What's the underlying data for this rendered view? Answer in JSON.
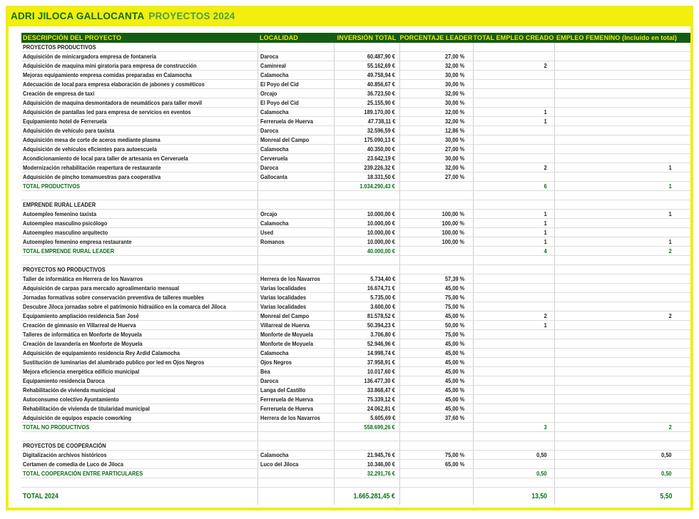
{
  "title": {
    "brand": "ADRI JILOCA GALLOCANTA",
    "suffix": "PROYECTOS 2024"
  },
  "colors": {
    "frame_yellow": "#f2ee0e",
    "brand_green": "#0b6e15",
    "suffix_green": "#4aa147",
    "header_bg": "#155c13",
    "header_text": "#f2ee0e",
    "total_text": "#0b6e15",
    "body_text": "#1d1d1b",
    "grid_line": "#cfcfcf"
  },
  "columns": [
    "DESCRIPCIÓN DEL PROYECTO",
    "LOCALIDAD",
    "INVERSIÓN TOTAL",
    "PORCENTAJE LEADER",
    "TOTAL EMPLEO CREADO",
    "EMPLEO FEMENINO (Incluido en total)"
  ],
  "sections": [
    {
      "name": "PROYECTOS PRODUCTIVOS",
      "rows": [
        {
          "desc": "Adquisición de minicargadora empresa de fontanería",
          "loc": "Daroca",
          "inv": "60.487,90 €",
          "pct": "27,00 %",
          "emp": "",
          "fem": ""
        },
        {
          "desc": "Adquisición de maquina mini giratoria para empresa de construcción",
          "loc": "Caminreal",
          "inv": "55.162,69 €",
          "pct": "32,00 %",
          "emp": "2",
          "fem": ""
        },
        {
          "desc": "Mejoras equipamiento empresa comidas preparadas en Calamocha",
          "loc": "Calamocha",
          "inv": "49.758,94 €",
          "pct": "30,00 %",
          "emp": "",
          "fem": ""
        },
        {
          "desc": "Adecuación de local para empresa elaboración de jabones y cosméticos",
          "loc": "El Poyo del Cid",
          "inv": "40.856,67 €",
          "pct": "30,00 %",
          "emp": "",
          "fem": ""
        },
        {
          "desc": "Creación de empresa de taxi",
          "loc": "Orcajo",
          "inv": "36.723,50 €",
          "pct": "32,00 %",
          "emp": "",
          "fem": ""
        },
        {
          "desc": "Adquisición de maquina desmontadora de neumáticos para taller movil",
          "loc": "El Poyo del Cid",
          "inv": "25.155,90 €",
          "pct": "30,00 %",
          "emp": "",
          "fem": ""
        },
        {
          "desc": "Adquisición de pantallas led para empresa de servicios en eventos",
          "loc": "Calamocha",
          "inv": "189.170,00 €",
          "pct": "32,00 %",
          "emp": "1",
          "fem": ""
        },
        {
          "desc": "Equipamiento hotel de Ferreruela",
          "loc": "Ferreruela de Huerva",
          "inv": "47.738,11 €",
          "pct": "32,00 %",
          "emp": "1",
          "fem": ""
        },
        {
          "desc": "Adquisición de vehículo para taxista",
          "loc": "Daroca",
          "inv": "32.596,59 €",
          "pct": "12,86 %",
          "emp": "",
          "fem": ""
        },
        {
          "desc": "Adquisición mesa de corte de aceros mediante plasma",
          "loc": "Monreal del Campo",
          "inv": "175.090,13 €",
          "pct": "30,00 %",
          "emp": "",
          "fem": ""
        },
        {
          "desc": "Adquisición de vehículos eficientes para autoescuela",
          "loc": "Calamocha",
          "inv": "40.350,00 €",
          "pct": "27,00 %",
          "emp": "",
          "fem": ""
        },
        {
          "desc": "Acondicionamiento de local para taller de artesanía en Cerveruela",
          "loc": "Cerveruela",
          "inv": "23.642,19 €",
          "pct": "30,00 %",
          "emp": "",
          "fem": ""
        },
        {
          "desc": "Modernización rehabilitación reapertura de restaurante",
          "loc": "Daroca",
          "inv": "239.226,32 €",
          "pct": "32,00 %",
          "emp": "2",
          "fem": "1"
        },
        {
          "desc": "Adquisición de pincho tomamuestras para cooperativa",
          "loc": "Gallocanta",
          "inv": "18.331,50 €",
          "pct": "27,00 %",
          "emp": "",
          "fem": ""
        }
      ],
      "total": {
        "label": "TOTAL PRODUCTIVOS",
        "inv": "1.034.290,43 €",
        "emp": "6",
        "fem": "1"
      }
    },
    {
      "name": "EMPRENDE RURAL LEADER",
      "rows": [
        {
          "desc": "Autoempleo femenino taxista",
          "loc": "Orcajo",
          "inv": "10.000,00 €",
          "pct": "100,00 %",
          "emp": "1",
          "fem": "1"
        },
        {
          "desc": "Autoempleo masculino psicólogo",
          "loc": "Calamocha",
          "inv": "10.000,00 €",
          "pct": "100,00 %",
          "emp": "1",
          "fem": ""
        },
        {
          "desc": "Autoempleo masculino arquitecto",
          "loc": "Used",
          "inv": "10.000,00 €",
          "pct": "100,00 %",
          "emp": "1",
          "fem": ""
        },
        {
          "desc": "Autoempleo femenino empresa restaurante",
          "loc": "Romanos",
          "inv": "10.000,00 €",
          "pct": "100,00 %",
          "emp": "1",
          "fem": "1"
        }
      ],
      "total": {
        "label": "TOTAL EMPRENDE RURAL LEADER",
        "inv": "40.000,00 €",
        "emp": "4",
        "fem": "2"
      }
    },
    {
      "name": "PROYECTOS NO PRODUCTIVOS",
      "rows": [
        {
          "desc": "Taller de informática en Herrera de los Navarros",
          "loc": "Herrera de los Navarros",
          "inv": "5.734,40 €",
          "pct": "57,39 %",
          "emp": "",
          "fem": ""
        },
        {
          "desc": "Adquisición de carpas para mercado agroalimentario mensual",
          "loc": "Varias localidades",
          "inv": "16.674,71 €",
          "pct": "45,00 %",
          "emp": "",
          "fem": ""
        },
        {
          "desc": "Jornadas formativas sobre conservación preventiva de talleres muebles",
          "loc": "Varias localidades",
          "inv": "5.735,00 €",
          "pct": "75,00 %",
          "emp": "",
          "fem": ""
        },
        {
          "desc": "Descubre Jiloca jornadas sobre el patrimonio hidraúlico en la comarca del Jiloca",
          "loc": "Varias localidades",
          "inv": "3.600,00 €",
          "pct": "75,00 %",
          "emp": "",
          "fem": ""
        },
        {
          "desc": "Equipamiento ampliación residencia San José",
          "loc": "Monreal del Campo",
          "inv": "81.578,52 €",
          "pct": "45,00 %",
          "emp": "2",
          "fem": "2"
        },
        {
          "desc": "Creación de gimnasio en Villarreal de Huerva",
          "loc": "Villarreal de Huerva",
          "inv": "50.394,23 €",
          "pct": "50,00 %",
          "emp": "1",
          "fem": ""
        },
        {
          "desc": "Talleres de informática en Monforte de Moyuela",
          "loc": "Monforte de Moyuela",
          "inv": "3.706,80 €",
          "pct": "75,00 %",
          "emp": "",
          "fem": ""
        },
        {
          "desc": "Creación de lavandería en Monforte de Moyuela",
          "loc": "Monforte de Moyuela",
          "inv": "52.946,96 €",
          "pct": "45,00 %",
          "emp": "",
          "fem": ""
        },
        {
          "desc": "Adquisición de equipamiento residencia Rey Ardid Calamocha",
          "loc": "Calamocha",
          "inv": "14.998,74 €",
          "pct": "45,00 %",
          "emp": "",
          "fem": ""
        },
        {
          "desc": "Sustitución de luminarias del alumbrado publico por led en Ojos Negros",
          "loc": "Ojos Negros",
          "inv": "37.958,91 €",
          "pct": "45,00 %",
          "emp": "",
          "fem": ""
        },
        {
          "desc": "Mejora eficiencia energética edificio municipal",
          "loc": "Bea",
          "inv": "10.017,60 €",
          "pct": "45,00 %",
          "emp": "",
          "fem": ""
        },
        {
          "desc": "Equipamiento residencia Daroca",
          "loc": "Daroca",
          "inv": "136.477,30 €",
          "pct": "45,00 %",
          "emp": "",
          "fem": ""
        },
        {
          "desc": "Rehabilitación de vivienda municipal",
          "loc": "Langa del Castillo",
          "inv": "33.868,47 €",
          "pct": "45,00 %",
          "emp": "",
          "fem": ""
        },
        {
          "desc": "Autoconsumo colectivo Ayuntamiento",
          "loc": "Ferreruela de Huerva",
          "inv": "75.339,12 €",
          "pct": "45,00 %",
          "emp": "",
          "fem": ""
        },
        {
          "desc": "Rehabilitación de vivienda de titularidad municipal",
          "loc": "Ferreruela de Huerva",
          "inv": "24.062,81 €",
          "pct": "45,00 %",
          "emp": "",
          "fem": ""
        },
        {
          "desc": "Adquisición de equipos espacio coworking",
          "loc": "Herrera de los Navarros",
          "inv": "5.605,69 €",
          "pct": "37,60 %",
          "emp": "",
          "fem": ""
        }
      ],
      "total": {
        "label": "TOTAL NO PRODUCTIVOS",
        "inv": "558.699,26 €",
        "emp": "3",
        "fem": "2"
      }
    },
    {
      "name": "PROYECTOS DE COOPERACIÓN",
      "rows": [
        {
          "desc": "Digitalización archivos históricos",
          "loc": "Calamocha",
          "inv": "21.945,76 €",
          "pct": "75,00 %",
          "emp": "0,50",
          "fem": "0,50"
        },
        {
          "desc": "Certamen de comedia de Luco de Jiloca",
          "loc": "Luco del Jiloca",
          "inv": "10.346,00 €",
          "pct": "65,00 %",
          "emp": "",
          "fem": ""
        }
      ],
      "total": {
        "label": "TOTAL COOPERACIÓN ENTRE PARTICULARES",
        "inv": "32.291,76 €",
        "emp": "0,50",
        "fem": "0,50"
      }
    }
  ],
  "grand_total": {
    "label": "TOTAL 2024",
    "inv": "1.665.281,45 €",
    "emp": "13,50",
    "fem": "5,50"
  }
}
